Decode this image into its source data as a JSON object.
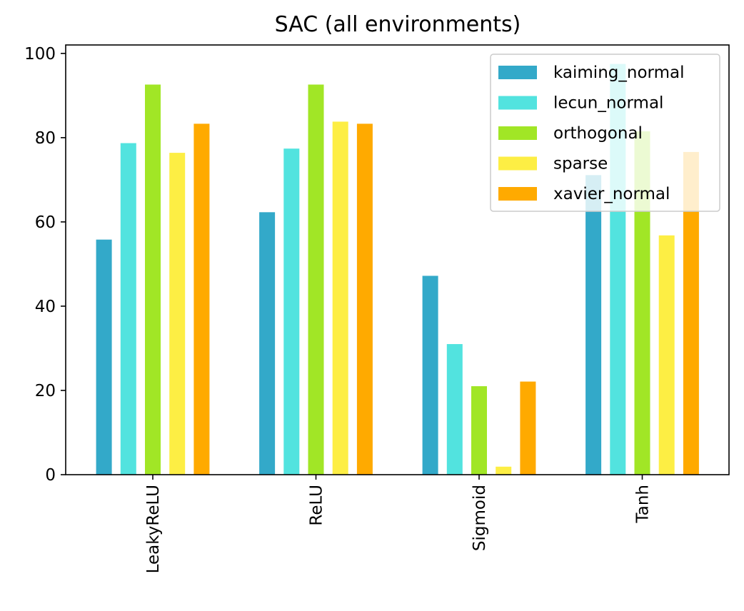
{
  "chart_data": {
    "type": "bar",
    "title": "SAC (all environments)",
    "xlabel": "",
    "ylabel": "",
    "categories": [
      "LeakyReLU",
      "ReLU",
      "Sigmoid",
      "Tanh"
    ],
    "series": [
      {
        "name": "kaiming_normal",
        "color": "#33a9c9",
        "values": [
          55.8,
          62.3,
          47.2,
          71.1
        ]
      },
      {
        "name": "lecun_normal",
        "color": "#52e3df",
        "values": [
          78.7,
          77.4,
          31.0,
          97.5
        ]
      },
      {
        "name": "orthogonal",
        "color": "#a1e626",
        "values": [
          92.6,
          92.6,
          21.0,
          81.5
        ]
      },
      {
        "name": "sparse",
        "color": "#fdee44",
        "values": [
          76.4,
          83.8,
          1.9,
          56.8
        ]
      },
      {
        "name": "xavier_normal",
        "color": "#ffaa00",
        "values": [
          83.3,
          83.3,
          22.1,
          76.6
        ]
      }
    ],
    "ylim": [
      0,
      102
    ],
    "yticks": [
      0,
      20,
      40,
      60,
      80,
      100
    ],
    "grid": false,
    "legend": "top-right"
  }
}
